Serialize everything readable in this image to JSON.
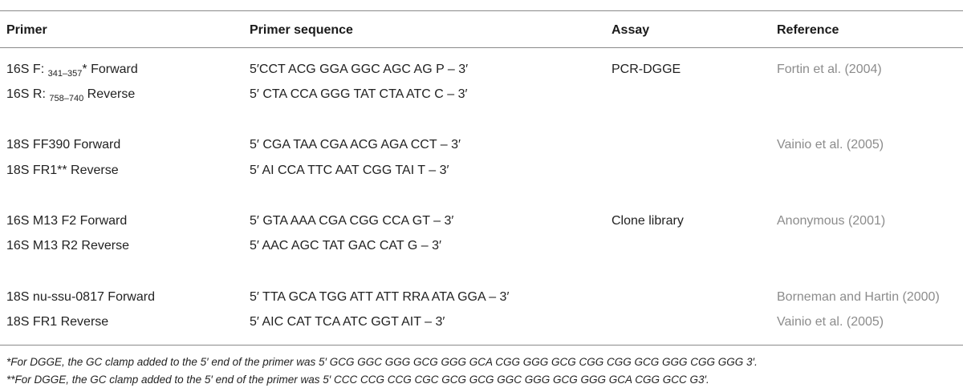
{
  "headers": {
    "primer": "Primer",
    "sequence": "Primer sequence",
    "assay": "Assay",
    "reference": "Reference"
  },
  "rows": [
    {
      "primer_pre": "16S F: ",
      "primer_sub": "341–357",
      "primer_post": "* Forward",
      "sequence": "5′CCT ACG GGA GGC AGC AG P – 3′",
      "assay": "PCR-DGGE",
      "reference": "Fortin et al. (2004)"
    },
    {
      "primer_pre": "16S R: ",
      "primer_sub": "758–740",
      "primer_post": " Reverse",
      "sequence": "5′ CTA CCA GGG TAT CTA ATC C – 3′",
      "assay": "",
      "reference": ""
    },
    {
      "primer": "18S FF390 Forward",
      "sequence": "5′ CGA TAA CGA ACG AGA CCT – 3′",
      "assay": "",
      "reference": "Vainio et al. (2005)"
    },
    {
      "primer": "18S FR1** Reverse",
      "sequence": "5′ AI CCA TTC AAT CGG TAI T – 3′",
      "assay": "",
      "reference": ""
    },
    {
      "primer": "16S M13 F2 Forward",
      "sequence": "5′ GTA AAA CGA CGG CCA GT – 3′",
      "assay": "Clone library",
      "reference": "Anonymous (2001)"
    },
    {
      "primer": "16S M13 R2 Reverse",
      "sequence": "5′ AAC AGC TAT GAC CAT G – 3′",
      "assay": "",
      "reference": ""
    },
    {
      "primer": "18S nu-ssu-0817 Forward",
      "sequence": "5′ TTA GCA TGG ATT ATT RRA ATA GGA – 3′",
      "assay": "",
      "reference": "Borneman and Hartin (2000)"
    },
    {
      "primer": "18S FR1 Reverse",
      "sequence": "5′ AIC CAT TCA ATC GGT AIT – 3′",
      "assay": "",
      "reference": "Vainio et al. (2005)"
    }
  ],
  "footnotes": [
    "*For DGGE, the GC clamp added to the 5′ end of the primer was 5′ GCG GGC GGG GCG GGG GCA CGG GGG GCG CGG CGG GCG GGG CGG GGG 3′.",
    "**For DGGE, the GC clamp added to the 5′ end of the primer was 5′ CCC CCG CCG CGC GCG GCG GGC GGG GCG GGG GCA CGG GCC G3′."
  ]
}
